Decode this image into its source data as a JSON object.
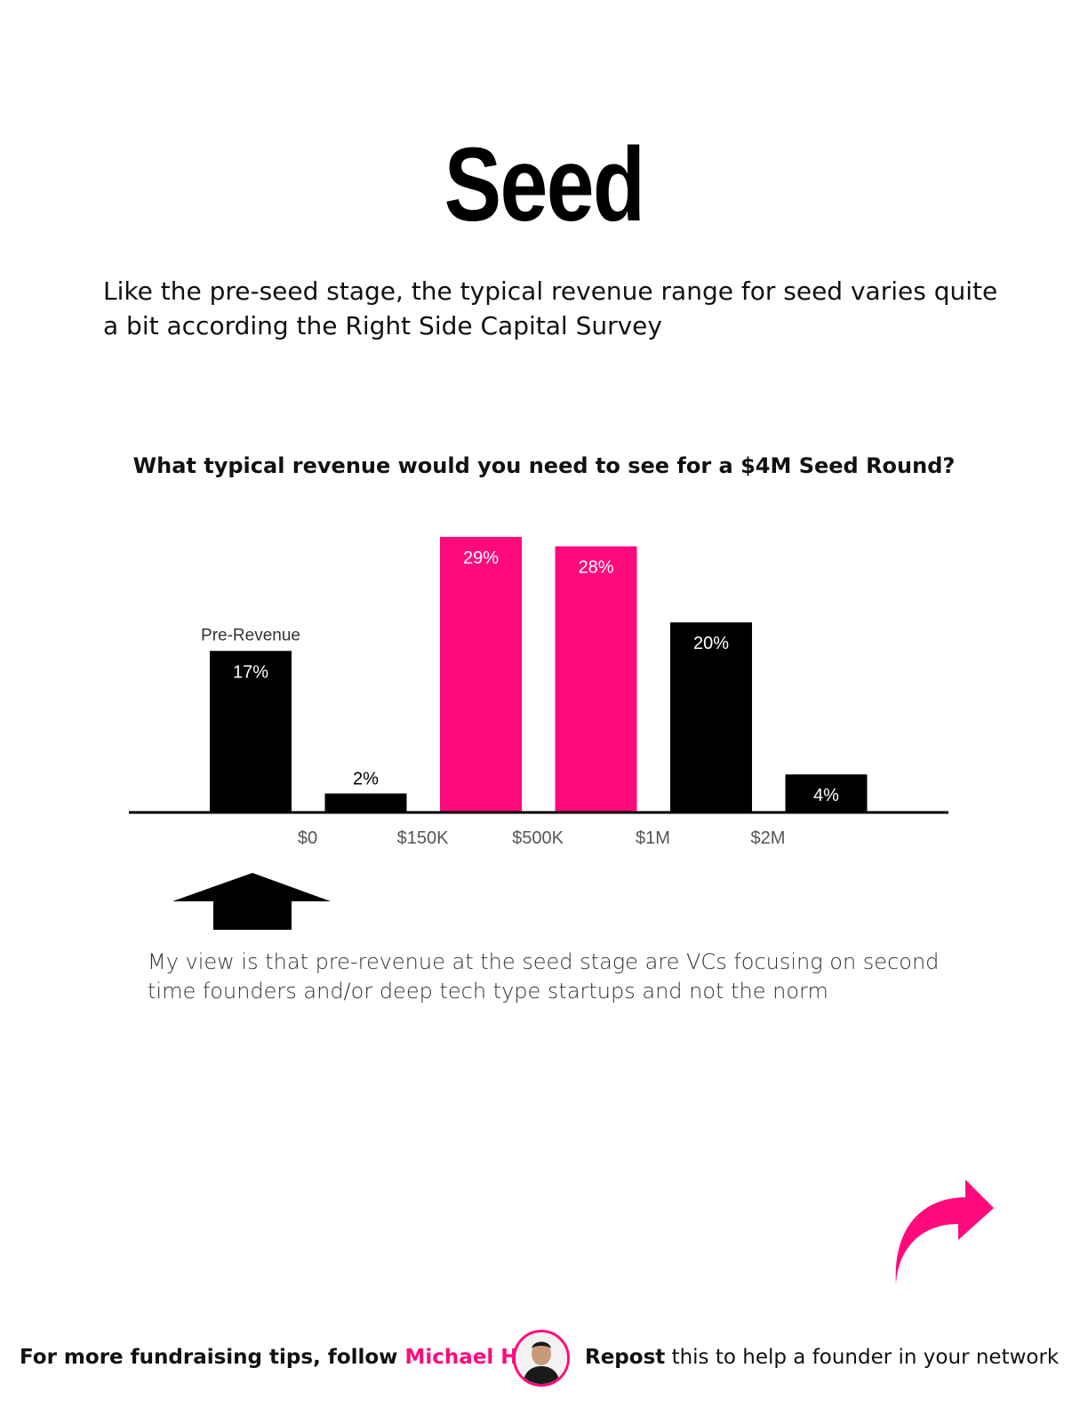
{
  "title": "Seed",
  "intro": "Like the pre-seed stage, the typical revenue range for seed varies quite a bit according the Right Side Capital Survey",
  "chart_data": {
    "type": "bar",
    "title": "What typical revenue would you need to see for a $4M Seed Round?",
    "categories": [
      "Pre-Revenue",
      "$0–$150K",
      "$150K–$500K",
      "$500K–$1M",
      "$1M–$2M",
      "$2M+"
    ],
    "values": [
      17,
      2,
      29,
      28,
      20,
      4
    ],
    "value_labels": [
      "17%",
      "2%",
      "29%",
      "28%",
      "20%",
      "4%"
    ],
    "bar_colors": [
      "#000000",
      "#000000",
      "#ff0a7c",
      "#ff0a7c",
      "#000000",
      "#000000"
    ],
    "category_label": "Pre-Revenue",
    "x_tick_labels": [
      "$0",
      "$150K",
      "$500K",
      "$1M",
      "$2M"
    ],
    "ylim": [
      0,
      29
    ],
    "unit": "%",
    "grid": false,
    "legend": "none"
  },
  "note": "My view is that pre-revenue at the seed stage are VCs focusing on second time founders and/or deep tech type startups and not the norm",
  "footer": {
    "left_prefix": "For more fundraising tips, follow ",
    "left_name": "Michael Ho",
    "right_bold": "Repost",
    "right_rest": " this to help a founder in your network"
  },
  "colors": {
    "accent": "#ff0a7c",
    "bar_dark": "#000000"
  },
  "icons": {
    "up": "up-arrow-icon",
    "share": "share-arrow-icon",
    "avatar": "avatar"
  }
}
